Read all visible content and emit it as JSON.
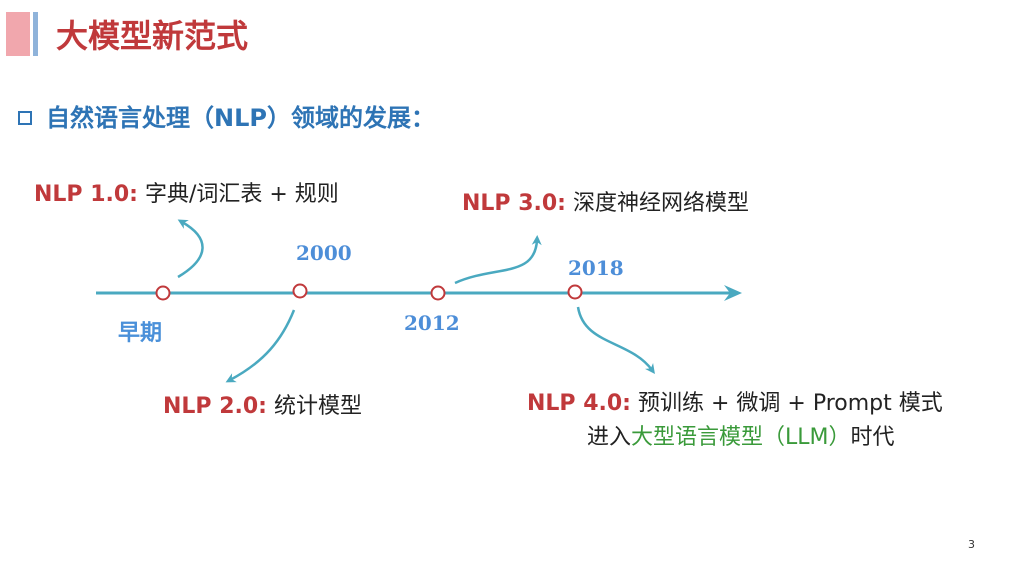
{
  "slide": {
    "title": "大模型新范式",
    "heading": "自然语言处理（NLP）领域的发展：",
    "page_number": "3"
  },
  "timeline": {
    "early_label": "早期",
    "years": [
      "2000",
      "2012",
      "2018"
    ],
    "stages": [
      {
        "prefix": "NLP 1.0:",
        "text": " 字典/词汇表 + 规则"
      },
      {
        "prefix": "NLP 2.0:",
        "text": " 统计模型"
      },
      {
        "prefix": "NLP 3.0:",
        "text": " 深度神经网络模型"
      },
      {
        "prefix": "NLP 4.0:",
        "text": " 预训练 + 微调 + Prompt 模式",
        "line2_before": "进入",
        "line2_highlight": "大型语言模型（LLM）",
        "line2_after": "时代"
      }
    ]
  },
  "colors": {
    "title": "#c0393b",
    "heading": "#2e74b5",
    "timeline": "#4aa9c0",
    "node": "#c0393b",
    "highlight": "#3a9a3a"
  }
}
